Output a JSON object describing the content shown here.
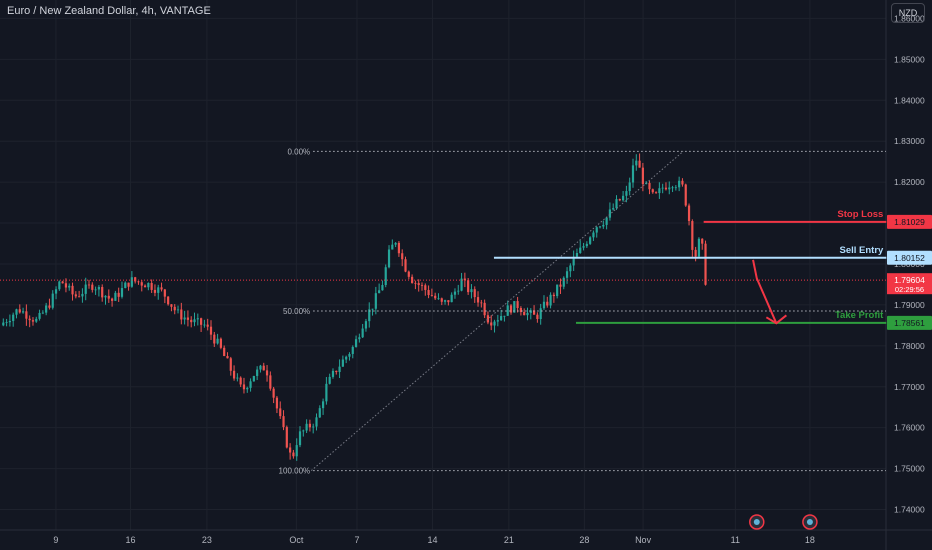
{
  "header": {
    "title": "Euro / New Zealand Dollar, 4h, VANTAGE",
    "currency": "NZD"
  },
  "chart_data": {
    "type": "candlestick",
    "ylim": [
      1.735,
      1.8645
    ],
    "y_ticks": [
      "1.86000",
      "1.85000",
      "1.84000",
      "1.83000",
      "1.82000",
      "1.81000",
      "1.80000",
      "1.79000",
      "1.78000",
      "1.77000",
      "1.76000",
      "1.75000",
      "1.74000"
    ],
    "x_ticks": [
      {
        "label": "9",
        "x": 0.06
      },
      {
        "label": "16",
        "x": 0.14
      },
      {
        "label": "23",
        "x": 0.222
      },
      {
        "label": "Oct",
        "x": 0.318
      },
      {
        "label": "7",
        "x": 0.383
      },
      {
        "label": "14",
        "x": 0.464
      },
      {
        "label": "21",
        "x": 0.546
      },
      {
        "label": "28",
        "x": 0.627
      },
      {
        "label": "Nov",
        "x": 0.69
      },
      {
        "label": "11",
        "x": 0.789
      },
      {
        "label": "18",
        "x": 0.869
      }
    ],
    "price_path": [
      [
        0.0,
        1.785
      ],
      [
        0.02,
        1.789
      ],
      [
        0.04,
        1.786
      ],
      [
        0.055,
        1.791
      ],
      [
        0.065,
        1.796
      ],
      [
        0.08,
        1.792
      ],
      [
        0.1,
        1.795
      ],
      [
        0.12,
        1.791
      ],
      [
        0.14,
        1.796
      ],
      [
        0.16,
        1.795
      ],
      [
        0.175,
        1.793
      ],
      [
        0.19,
        1.788
      ],
      [
        0.205,
        1.786
      ],
      [
        0.22,
        1.785
      ],
      [
        0.235,
        1.78
      ],
      [
        0.248,
        1.774
      ],
      [
        0.26,
        1.769
      ],
      [
        0.272,
        1.773
      ],
      [
        0.285,
        1.775
      ],
      [
        0.298,
        1.764
      ],
      [
        0.308,
        1.756
      ],
      [
        0.313,
        1.752
      ],
      [
        0.32,
        1.758
      ],
      [
        0.33,
        1.76
      ],
      [
        0.34,
        1.762
      ],
      [
        0.35,
        1.77
      ],
      [
        0.36,
        1.774
      ],
      [
        0.37,
        1.777
      ],
      [
        0.38,
        1.78
      ],
      [
        0.39,
        1.786
      ],
      [
        0.4,
        1.79
      ],
      [
        0.41,
        1.795
      ],
      [
        0.418,
        1.803
      ],
      [
        0.425,
        1.806
      ],
      [
        0.433,
        1.8
      ],
      [
        0.443,
        1.796
      ],
      [
        0.455,
        1.794
      ],
      [
        0.465,
        1.792
      ],
      [
        0.475,
        1.79
      ],
      [
        0.485,
        1.792
      ],
      [
        0.495,
        1.796
      ],
      [
        0.505,
        1.793
      ],
      [
        0.515,
        1.791
      ],
      [
        0.525,
        1.786
      ],
      [
        0.535,
        1.787
      ],
      [
        0.545,
        1.789
      ],
      [
        0.555,
        1.79
      ],
      [
        0.565,
        1.788
      ],
      [
        0.575,
        1.787
      ],
      [
        0.585,
        1.79
      ],
      [
        0.595,
        1.793
      ],
      [
        0.605,
        1.796
      ],
      [
        0.615,
        1.801
      ],
      [
        0.625,
        1.804
      ],
      [
        0.638,
        1.809
      ],
      [
        0.65,
        1.811
      ],
      [
        0.662,
        1.815
      ],
      [
        0.672,
        1.817
      ],
      [
        0.682,
        1.826
      ],
      [
        0.692,
        1.819
      ],
      [
        0.702,
        1.816
      ],
      [
        0.712,
        1.819
      ],
      [
        0.722,
        1.82
      ],
      [
        0.732,
        1.819
      ],
      [
        0.738,
        1.813
      ],
      [
        0.745,
        1.801
      ],
      [
        0.752,
        1.807
      ],
      [
        0.757,
        1.796
      ]
    ],
    "fib_levels": [
      {
        "label": "0.00%",
        "price": 1.8275
      },
      {
        "label": "50.00%",
        "price": 1.7885
      },
      {
        "label": "100.00%",
        "price": 1.7495
      }
    ],
    "trade_levels": [
      {
        "name": "Stop Loss",
        "price": 1.81029,
        "price_label": "1.81029",
        "color": "#f23645"
      },
      {
        "name": "Sell Entry",
        "price": 1.80152,
        "price_label": "1.80152",
        "color": "#b2dfff"
      },
      {
        "name": "Take Profit",
        "price": 1.78561,
        "price_label": "1.78561",
        "color": "#2e9e3e"
      }
    ],
    "current_price": {
      "price": 1.79604,
      "label": "1.79604",
      "timer": "02:29:56",
      "color": "#f23645"
    },
    "colors": {
      "up": "#26a69a",
      "down": "#ef5350",
      "grid": "#1e222d",
      "text": "#b2b5be",
      "bg": "#131722"
    }
  }
}
